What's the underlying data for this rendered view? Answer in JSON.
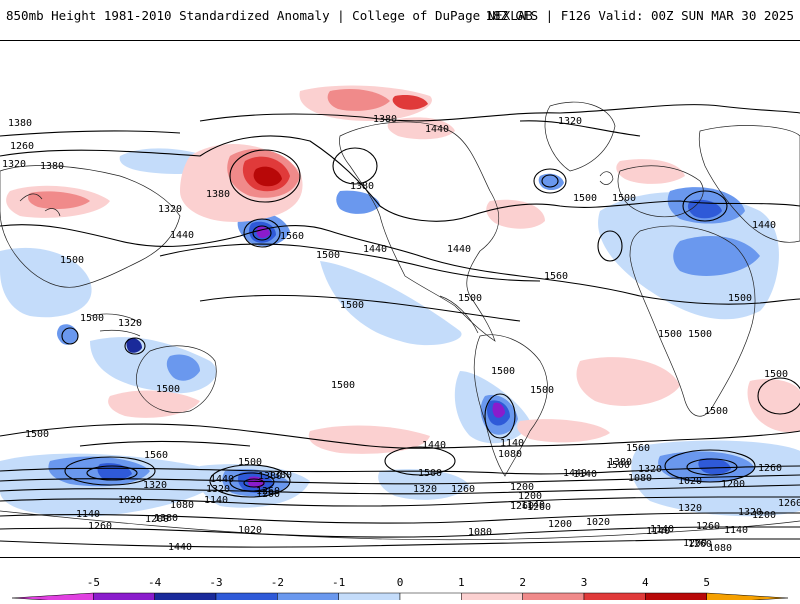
{
  "header": {
    "left": "850mb Height 1981-2010 Standardized Anomaly | College of DuPage NEXLAB",
    "right": "18Z GFS | F126 Valid: 00Z SUN MAR 30 2025"
  },
  "colorbar": {
    "ticks": [
      "-5",
      "-4",
      "-3",
      "-2",
      "-1",
      "0",
      "1",
      "2",
      "3",
      "4",
      "5"
    ],
    "colors": [
      "#e040e0",
      "#8a1ccc",
      "#1a2a9a",
      "#2f5ad8",
      "#6a98ee",
      "#c4dcfa",
      "#ffffff",
      "#fbd0d0",
      "#f08a8a",
      "#e03a3a",
      "#b80808",
      "#f5a000"
    ]
  },
  "contour_labels": [
    "1380",
    "1440",
    "1320",
    "1260",
    "1320",
    "1380",
    "1380",
    "1320",
    "1500",
    "1440",
    "1560",
    "1500",
    "1380",
    "1440",
    "1440",
    "1500",
    "1560",
    "1500",
    "1500",
    "1320",
    "1380",
    "1500",
    "1440",
    "1500",
    "1500",
    "1500",
    "1500",
    "1500",
    "1500",
    "1500",
    "1500",
    "1500",
    "1500",
    "1560",
    "1500",
    "1440",
    "1500",
    "1560",
    "1440",
    "1500",
    "1440",
    "1380",
    "1320",
    "1260",
    "1200",
    "1140",
    "1080",
    "1020",
    "1260",
    "1200",
    "1140",
    "1020",
    "1380",
    "1320",
    "1260",
    "1200",
    "1140",
    "1080",
    "1020",
    "1320",
    "1260",
    "1200",
    "1140",
    "1080",
    "1020",
    "1260",
    "1200",
    "1140",
    "1140",
    "1200",
    "1260",
    "1320",
    "1380",
    "1320",
    "1260",
    "1200",
    "1140",
    "1080",
    "1080",
    "1140",
    "1200",
    "1260",
    "1260",
    "1320",
    "1380",
    "1440",
    "1380",
    "1500",
    "1500"
  ]
}
